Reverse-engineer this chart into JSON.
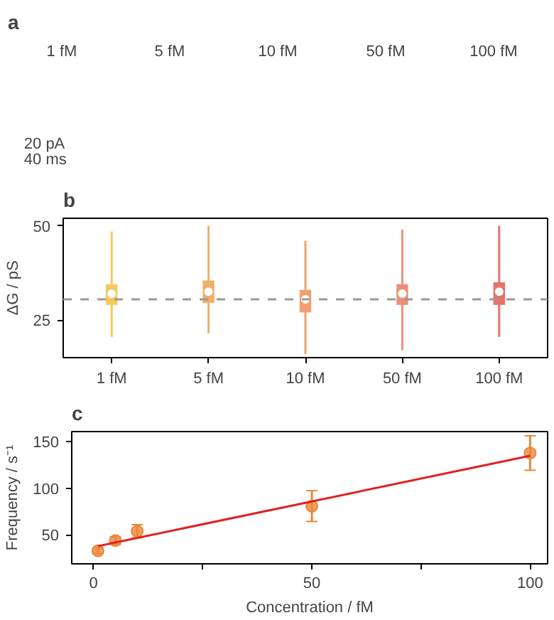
{
  "chart_data": [
    {
      "type": "other",
      "title": "a",
      "categories": [
        "1 fM",
        "5 fM",
        "10 fM",
        "50 fM",
        "100 fM"
      ],
      "annotations": [
        "20 pA",
        "40 ms"
      ]
    },
    {
      "type": "box",
      "title": "b",
      "ylabel": "ΔG / pS",
      "categories": [
        "1 fM",
        "5 fM",
        "10 fM",
        "50 fM",
        "100 fM"
      ],
      "colors": [
        "#f5c85a",
        "#eeb06a",
        "#f0a070",
        "#ec8f78",
        "#e8726a"
      ],
      "boxes": [
        {
          "low": 20.5,
          "q1": 29.0,
          "median": 32.0,
          "q3": 34.5,
          "high": 48.5
        },
        {
          "low": 21.5,
          "q1": 29.5,
          "median": 32.5,
          "q3": 35.5,
          "high": 50.0
        },
        {
          "low": 16.0,
          "q1": 27.0,
          "median": 30.5,
          "q3": 33.0,
          "high": 46.0
        },
        {
          "low": 17.0,
          "q1": 29.0,
          "median": 32.0,
          "q3": 34.5,
          "high": 49.0
        },
        {
          "low": 20.5,
          "q1": 29.0,
          "median": 32.5,
          "q3": 35.0,
          "high": 50.0
        }
      ],
      "ylim": [
        15,
        52
      ],
      "yticks": [
        25,
        50
      ],
      "grid": false,
      "ref_lines": [
        {
          "axis": "y",
          "value": 30.5,
          "color": "#999999",
          "line_style": "dashed"
        }
      ]
    },
    {
      "type": "scatter",
      "title": "c",
      "xlabel": "Concentration / fM",
      "ylabel": "Frequency / s⁻¹",
      "xlim": [
        -5,
        104
      ],
      "ylim": [
        19,
        161
      ],
      "xticks": [
        0,
        {
          "value": 25,
          "label": null
        },
        50,
        {
          "value": 75,
          "label": null
        },
        100
      ],
      "yticks": [
        50,
        100,
        150
      ],
      "grid": false,
      "marker": "circle",
      "series": [
        {
          "type": "scatter",
          "color": "#e8883a",
          "x": [
            1,
            5,
            10,
            50,
            100
          ],
          "values": [
            33,
            44,
            54,
            81,
            138
          ],
          "errors": [
            3,
            4,
            7,
            16.5,
            18.5
          ]
        },
        {
          "type": "line",
          "color": "#e02020",
          "x": [
            1,
            100
          ],
          "values": [
            38,
            135
          ],
          "marker": "none"
        }
      ]
    }
  ]
}
